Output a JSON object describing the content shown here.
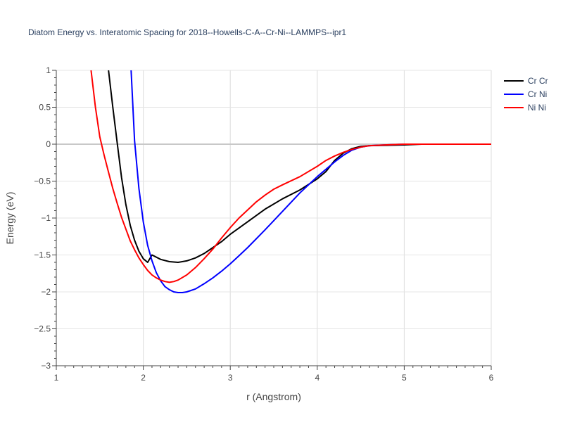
{
  "chart_data": {
    "type": "line",
    "title": "Diatom Energy vs. Interatomic Spacing for 2018--Howells-C-A--Cr-Ni--LAMMPS--ipr1",
    "xlabel": "r (Angstrom)",
    "ylabel": "Energy (eV)",
    "xlim": [
      1,
      6
    ],
    "ylim": [
      -3,
      1
    ],
    "x_ticks": [
      1,
      2,
      3,
      4,
      5,
      6
    ],
    "y_ticks": [
      -3,
      -2.5,
      -2,
      -1.5,
      -1,
      -0.5,
      0,
      0.5,
      1
    ],
    "x_tick_labels": [
      "1",
      "2",
      "3",
      "4",
      "5",
      "6"
    ],
    "y_tick_labels": [
      "−3",
      "−2.5",
      "−2",
      "−1.5",
      "−1",
      "−0.5",
      "0",
      "0.5",
      "1"
    ],
    "grid": true,
    "legend_position": "top-right",
    "series": [
      {
        "name": "Cr Cr",
        "color": "#000000",
        "x": [
          1.6,
          1.65,
          1.7,
          1.75,
          1.8,
          1.85,
          1.9,
          1.95,
          2.0,
          2.05,
          2.1,
          2.2,
          2.3,
          2.4,
          2.5,
          2.6,
          2.7,
          2.8,
          2.9,
          3.0,
          3.2,
          3.4,
          3.6,
          3.8,
          4.0,
          4.1,
          4.2,
          4.3,
          4.4,
          4.5,
          4.6,
          4.8,
          5.0,
          5.2,
          5.5,
          6.0
        ],
        "y": [
          1.0,
          0.5,
          0.02,
          -0.45,
          -0.82,
          -1.1,
          -1.3,
          -1.45,
          -1.55,
          -1.6,
          -1.5,
          -1.56,
          -1.59,
          -1.6,
          -1.58,
          -1.54,
          -1.48,
          -1.4,
          -1.32,
          -1.22,
          -1.05,
          -0.88,
          -0.74,
          -0.62,
          -0.47,
          -0.37,
          -0.22,
          -0.12,
          -0.06,
          -0.03,
          -0.02,
          -0.015,
          -0.01,
          0.0,
          0.0,
          0.0
        ]
      },
      {
        "name": "Cr Ni",
        "color": "#0000ff",
        "x": [
          1.86,
          1.9,
          1.95,
          2.0,
          2.05,
          2.1,
          2.15,
          2.2,
          2.25,
          2.3,
          2.35,
          2.4,
          2.45,
          2.5,
          2.6,
          2.7,
          2.8,
          2.9,
          3.0,
          3.1,
          3.2,
          3.4,
          3.6,
          3.8,
          4.0,
          4.1,
          4.2,
          4.3,
          4.4,
          4.5,
          4.6,
          4.8,
          5.0,
          5.2,
          5.5,
          6.0
        ],
        "y": [
          1.0,
          0.05,
          -0.6,
          -1.05,
          -1.37,
          -1.58,
          -1.74,
          -1.85,
          -1.93,
          -1.97,
          -2.0,
          -2.01,
          -2.01,
          -2.0,
          -1.96,
          -1.89,
          -1.81,
          -1.72,
          -1.62,
          -1.51,
          -1.4,
          -1.16,
          -0.91,
          -0.66,
          -0.44,
          -0.34,
          -0.24,
          -0.15,
          -0.08,
          -0.04,
          -0.02,
          -0.01,
          0.0,
          0.0,
          0.0,
          0.0
        ]
      },
      {
        "name": "Ni Ni",
        "color": "#ff0000",
        "x": [
          1.4,
          1.45,
          1.5,
          1.55,
          1.6,
          1.65,
          1.7,
          1.75,
          1.8,
          1.85,
          1.9,
          1.95,
          2.0,
          2.05,
          2.1,
          2.15,
          2.2,
          2.25,
          2.3,
          2.35,
          2.4,
          2.5,
          2.6,
          2.7,
          2.8,
          2.9,
          3.0,
          3.1,
          3.2,
          3.3,
          3.4,
          3.5,
          3.6,
          3.8,
          4.0,
          4.1,
          4.2,
          4.3,
          4.4,
          4.5,
          4.6,
          4.8,
          5.0,
          5.2,
          5.5,
          6.0
        ],
        "y": [
          1.0,
          0.5,
          0.1,
          -0.15,
          -0.38,
          -0.6,
          -0.8,
          -0.99,
          -1.15,
          -1.31,
          -1.43,
          -1.54,
          -1.63,
          -1.71,
          -1.77,
          -1.81,
          -1.84,
          -1.86,
          -1.87,
          -1.86,
          -1.84,
          -1.77,
          -1.67,
          -1.55,
          -1.42,
          -1.27,
          -1.13,
          -1.0,
          -0.89,
          -0.78,
          -0.69,
          -0.61,
          -0.55,
          -0.44,
          -0.3,
          -0.22,
          -0.16,
          -0.11,
          -0.07,
          -0.04,
          -0.02,
          -0.01,
          0.0,
          0.0,
          0.0,
          0.0
        ]
      }
    ]
  }
}
